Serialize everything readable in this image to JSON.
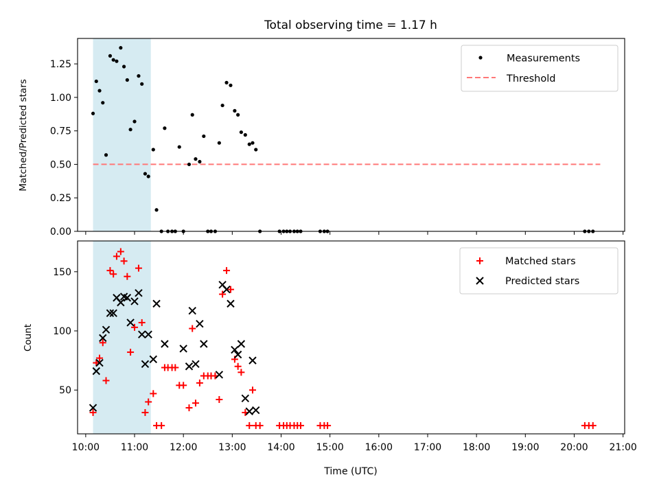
{
  "title": "Total observing time = 1.17 h",
  "xlabel": "Time (UTC)",
  "x_tick_labels": [
    "10:00",
    "11:00",
    "12:00",
    "13:00",
    "14:00",
    "15:00",
    "16:00",
    "17:00",
    "18:00",
    "19:00",
    "20:00",
    "21:00"
  ],
  "colors": {
    "measure": "#000000",
    "threshold": "#ff7777",
    "matched": "#ff0000",
    "predicted": "#000000",
    "span": "#add8e6"
  },
  "chart_data": [
    {
      "type": "scatter",
      "ylabel": "Matched/Predicted stars",
      "ylim": [
        0,
        1.44
      ],
      "xlim": [
        "10:00",
        "21:00"
      ],
      "y_tick_labels": [
        "0.00",
        "0.25",
        "0.50",
        "0.75",
        "1.00",
        "1.25"
      ],
      "y_tick_values": [
        0,
        0.25,
        0.5,
        0.75,
        1.0,
        1.25
      ],
      "highlight_span": [
        "10:09",
        "11:20"
      ],
      "legend_position": "top-right",
      "legend": [
        {
          "label": "Measurements",
          "marker": "dot"
        },
        {
          "label": "Threshold",
          "marker": "dashed-line"
        }
      ],
      "threshold": {
        "name": "Threshold",
        "y": 0.5,
        "x_start": "10:09",
        "x_end": "20:32"
      },
      "measurements": [
        {
          "x": "10:09",
          "y": 0.88
        },
        {
          "x": "10:13",
          "y": 1.12
        },
        {
          "x": "10:17",
          "y": 1.05
        },
        {
          "x": "10:21",
          "y": 0.96
        },
        {
          "x": "10:25",
          "y": 0.57
        },
        {
          "x": "10:30",
          "y": 1.31
        },
        {
          "x": "10:34",
          "y": 1.28
        },
        {
          "x": "10:38",
          "y": 1.27
        },
        {
          "x": "10:43",
          "y": 1.37
        },
        {
          "x": "10:47",
          "y": 1.23
        },
        {
          "x": "10:51",
          "y": 1.13
        },
        {
          "x": "10:55",
          "y": 0.76
        },
        {
          "x": "11:00",
          "y": 0.82
        },
        {
          "x": "11:05",
          "y": 1.16
        },
        {
          "x": "11:09",
          "y": 1.1
        },
        {
          "x": "11:13",
          "y": 0.43
        },
        {
          "x": "11:17",
          "y": 0.41
        },
        {
          "x": "11:23",
          "y": 0.61
        },
        {
          "x": "11:27",
          "y": 0.16
        },
        {
          "x": "11:33",
          "y": 0.0
        },
        {
          "x": "11:37",
          "y": 0.77
        },
        {
          "x": "11:41",
          "y": 0.0
        },
        {
          "x": "11:46",
          "y": 0.0
        },
        {
          "x": "11:50",
          "y": 0.0
        },
        {
          "x": "11:55",
          "y": 0.63
        },
        {
          "x": "12:00",
          "y": 0.0
        },
        {
          "x": "12:07",
          "y": 0.5
        },
        {
          "x": "12:11",
          "y": 0.87
        },
        {
          "x": "12:15",
          "y": 0.54
        },
        {
          "x": "12:20",
          "y": 0.52
        },
        {
          "x": "12:25",
          "y": 0.71
        },
        {
          "x": "12:30",
          "y": 0.0
        },
        {
          "x": "12:34",
          "y": 0.0
        },
        {
          "x": "12:39",
          "y": 0.0
        },
        {
          "x": "12:44",
          "y": 0.66
        },
        {
          "x": "12:48",
          "y": 0.94
        },
        {
          "x": "12:53",
          "y": 1.11
        },
        {
          "x": "12:58",
          "y": 1.09
        },
        {
          "x": "13:03",
          "y": 0.9
        },
        {
          "x": "13:07",
          "y": 0.87
        },
        {
          "x": "13:11",
          "y": 0.74
        },
        {
          "x": "13:16",
          "y": 0.72
        },
        {
          "x": "13:21",
          "y": 0.65
        },
        {
          "x": "13:25",
          "y": 0.66
        },
        {
          "x": "13:29",
          "y": 0.61
        },
        {
          "x": "13:34",
          "y": 0.0
        },
        {
          "x": "13:58",
          "y": 0.0
        },
        {
          "x": "14:03",
          "y": 0.0
        },
        {
          "x": "14:07",
          "y": 0.0
        },
        {
          "x": "14:11",
          "y": 0.0
        },
        {
          "x": "14:16",
          "y": 0.0
        },
        {
          "x": "14:20",
          "y": 0.0
        },
        {
          "x": "14:24",
          "y": 0.0
        },
        {
          "x": "14:48",
          "y": 0.0
        },
        {
          "x": "14:53",
          "y": 0.0
        },
        {
          "x": "14:57",
          "y": 0.0
        },
        {
          "x": "20:13",
          "y": 0.0
        },
        {
          "x": "20:18",
          "y": 0.0
        },
        {
          "x": "20:23",
          "y": 0.0
        }
      ]
    },
    {
      "type": "scatter",
      "ylabel": "Count",
      "ylim": [
        13,
        176
      ],
      "xlim": [
        "10:00",
        "21:00"
      ],
      "y_tick_labels": [
        "50",
        "100",
        "150"
      ],
      "y_tick_values": [
        50,
        100,
        150
      ],
      "highlight_span": [
        "10:09",
        "11:20"
      ],
      "legend_position": "top-right",
      "series": [
        {
          "name": "Matched stars",
          "marker": "plus",
          "points": [
            {
              "x": "10:09",
              "y": 31
            },
            {
              "x": "10:13",
              "y": 73
            },
            {
              "x": "10:17",
              "y": 77
            },
            {
              "x": "10:21",
              "y": 90
            },
            {
              "x": "10:25",
              "y": 58
            },
            {
              "x": "10:30",
              "y": 151
            },
            {
              "x": "10:34",
              "y": 148
            },
            {
              "x": "10:38",
              "y": 163
            },
            {
              "x": "10:43",
              "y": 167
            },
            {
              "x": "10:47",
              "y": 159
            },
            {
              "x": "10:51",
              "y": 146
            },
            {
              "x": "10:55",
              "y": 82
            },
            {
              "x": "11:00",
              "y": 103
            },
            {
              "x": "11:05",
              "y": 153
            },
            {
              "x": "11:09",
              "y": 107
            },
            {
              "x": "11:13",
              "y": 31
            },
            {
              "x": "11:17",
              "y": 40
            },
            {
              "x": "11:23",
              "y": 47
            },
            {
              "x": "11:27",
              "y": 20
            },
            {
              "x": "11:33",
              "y": 20
            },
            {
              "x": "11:37",
              "y": 69
            },
            {
              "x": "11:41",
              "y": 69
            },
            {
              "x": "11:46",
              "y": 69
            },
            {
              "x": "11:50",
              "y": 69
            },
            {
              "x": "11:55",
              "y": 54
            },
            {
              "x": "12:00",
              "y": 54
            },
            {
              "x": "12:07",
              "y": 35
            },
            {
              "x": "12:11",
              "y": 102
            },
            {
              "x": "12:15",
              "y": 39
            },
            {
              "x": "12:20",
              "y": 56
            },
            {
              "x": "12:25",
              "y": 62
            },
            {
              "x": "12:30",
              "y": 62
            },
            {
              "x": "12:34",
              "y": 62
            },
            {
              "x": "12:39",
              "y": 62
            },
            {
              "x": "12:44",
              "y": 42
            },
            {
              "x": "12:48",
              "y": 131
            },
            {
              "x": "12:53",
              "y": 151
            },
            {
              "x": "12:58",
              "y": 135
            },
            {
              "x": "13:03",
              "y": 76
            },
            {
              "x": "13:07",
              "y": 70
            },
            {
              "x": "13:11",
              "y": 65
            },
            {
              "x": "13:16",
              "y": 31
            },
            {
              "x": "13:21",
              "y": 20
            },
            {
              "x": "13:25",
              "y": 50
            },
            {
              "x": "13:29",
              "y": 20
            },
            {
              "x": "13:34",
              "y": 20
            },
            {
              "x": "13:58",
              "y": 20
            },
            {
              "x": "14:03",
              "y": 20
            },
            {
              "x": "14:07",
              "y": 20
            },
            {
              "x": "14:11",
              "y": 20
            },
            {
              "x": "14:16",
              "y": 20
            },
            {
              "x": "14:20",
              "y": 20
            },
            {
              "x": "14:24",
              "y": 20
            },
            {
              "x": "14:48",
              "y": 20
            },
            {
              "x": "14:53",
              "y": 20
            },
            {
              "x": "14:57",
              "y": 20
            },
            {
              "x": "20:13",
              "y": 20
            },
            {
              "x": "20:18",
              "y": 20
            },
            {
              "x": "20:23",
              "y": 20
            }
          ]
        },
        {
          "name": "Predicted stars",
          "marker": "x",
          "points": [
            {
              "x": "10:09",
              "y": 35
            },
            {
              "x": "10:13",
              "y": 66
            },
            {
              "x": "10:17",
              "y": 73
            },
            {
              "x": "10:21",
              "y": 94
            },
            {
              "x": "10:25",
              "y": 101
            },
            {
              "x": "10:30",
              "y": 115
            },
            {
              "x": "10:34",
              "y": 115
            },
            {
              "x": "10:38",
              "y": 128
            },
            {
              "x": "10:43",
              "y": 124
            },
            {
              "x": "10:47",
              "y": 129
            },
            {
              "x": "10:51",
              "y": 128
            },
            {
              "x": "10:55",
              "y": 107
            },
            {
              "x": "11:00",
              "y": 125
            },
            {
              "x": "11:05",
              "y": 132
            },
            {
              "x": "11:09",
              "y": 97
            },
            {
              "x": "11:13",
              "y": 72
            },
            {
              "x": "11:17",
              "y": 97
            },
            {
              "x": "11:23",
              "y": 76
            },
            {
              "x": "11:27",
              "y": 123
            },
            {
              "x": "11:37",
              "y": 89
            },
            {
              "x": "12:00",
              "y": 85
            },
            {
              "x": "12:07",
              "y": 70
            },
            {
              "x": "12:11",
              "y": 117
            },
            {
              "x": "12:15",
              "y": 72
            },
            {
              "x": "12:20",
              "y": 106
            },
            {
              "x": "12:25",
              "y": 89
            },
            {
              "x": "12:44",
              "y": 63
            },
            {
              "x": "12:48",
              "y": 139
            },
            {
              "x": "12:53",
              "y": 135
            },
            {
              "x": "12:58",
              "y": 123
            },
            {
              "x": "13:03",
              "y": 84
            },
            {
              "x": "13:07",
              "y": 80
            },
            {
              "x": "13:11",
              "y": 89
            },
            {
              "x": "13:16",
              "y": 43
            },
            {
              "x": "13:21",
              "y": 32
            },
            {
              "x": "13:25",
              "y": 75
            },
            {
              "x": "13:29",
              "y": 33
            }
          ]
        }
      ]
    }
  ]
}
